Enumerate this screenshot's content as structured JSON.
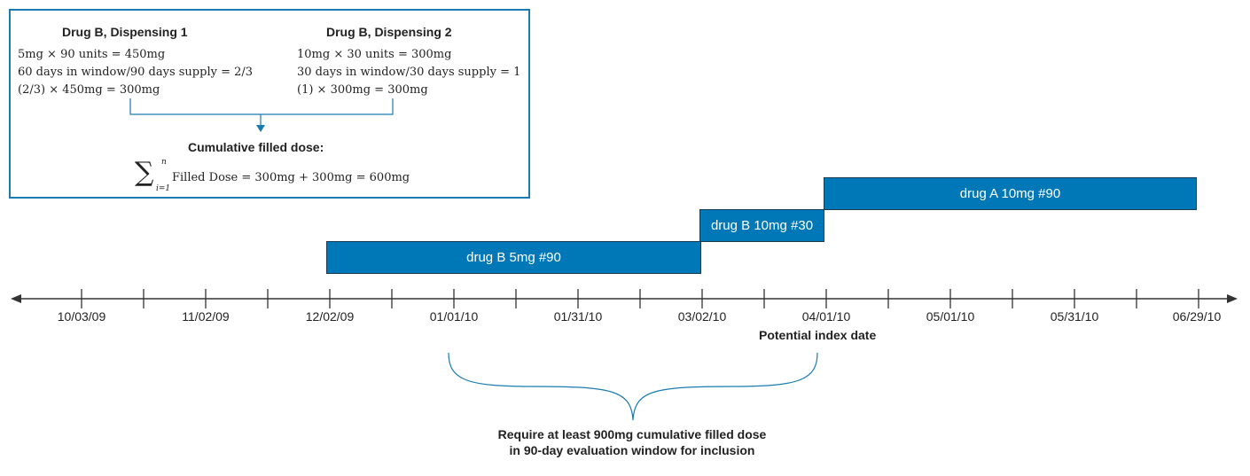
{
  "calc": {
    "dispensing1": {
      "title": "Drug B, Dispensing 1",
      "line1": "5mg × 90 units = 450mg",
      "line2": "60 days in window/90 days supply = 2/3",
      "line3": "(2/3) × 450mg = 300mg"
    },
    "dispensing2": {
      "title": "Drug B, Dispensing 2",
      "line1": "10mg × 30 units = 300mg",
      "line2": "30 days in window/30 days supply = 1",
      "line3": "(1) × 300mg = 300mg"
    },
    "cumulative_title": "Cumulative filled dose:",
    "sum_upper": "n",
    "sum_lower": "i=1",
    "sum_expression": "Filled Dose = 300mg + 300mg = 600mg"
  },
  "timeline": {
    "tick_labels": [
      "10/03/09",
      "11/02/09",
      "12/02/09",
      "01/01/10",
      "01/31/10",
      "03/02/10",
      "04/01/10",
      "05/01/10",
      "05/31/10",
      "06/29/10"
    ],
    "bars": [
      {
        "label": "drug B 5mg #90",
        "start": "12/02/09",
        "end": "03/02/10"
      },
      {
        "label": "drug B 10mg #30",
        "start": "03/02/10",
        "end": "04/01/10"
      },
      {
        "label": "drug A 10mg #90",
        "start": "04/01/10",
        "end": "06/29/10"
      }
    ],
    "index_label": "Potential index date",
    "window_note_line1": "Require at least 900mg cumulative filled dose",
    "window_note_line2": "in 90-day evaluation window for inclusion"
  },
  "colors": {
    "bar_fill": "#0077b6",
    "box_border": "#1a7bb0",
    "bracket": "#1a7bb0",
    "axis": "#333333"
  }
}
